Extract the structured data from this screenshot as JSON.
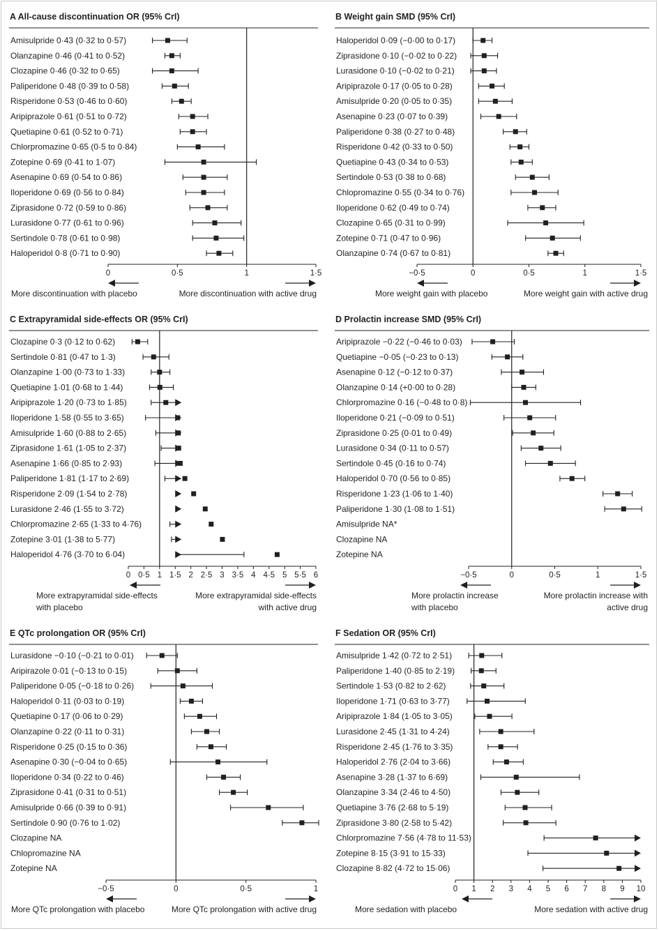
{
  "colors": {
    "ink": "#231f20",
    "rule": "#231f20",
    "frame": "#c9c9c9"
  },
  "chart_data": [
    {
      "id": "A",
      "letter": "A",
      "title": "All-cause discontinuation OR (95% CrI)",
      "type": "forest",
      "scale": "linear",
      "xlim": [
        0,
        1.5
      ],
      "null_value": 1,
      "ticks": [
        0,
        0.5,
        1,
        1.5
      ],
      "tick_labels": [
        "0",
        "0·5",
        "1",
        "1·5"
      ],
      "left_label": [
        "More discontinuation with placebo"
      ],
      "right_label": [
        "More discontinuation with active drug"
      ],
      "rows": [
        {
          "label": "Amisulpride 0·43 (0·32 to 0·57)",
          "est": 0.43,
          "lo": 0.32,
          "hi": 0.57
        },
        {
          "label": "Olanzapine 0·46 (0·41 to 0·52)",
          "est": 0.46,
          "lo": 0.41,
          "hi": 0.52
        },
        {
          "label": "Clozapine 0·46 (0·32 to 0·65)",
          "est": 0.46,
          "lo": 0.32,
          "hi": 0.65
        },
        {
          "label": "Paliperidone 0·48 (0·39 to 0·58)",
          "est": 0.48,
          "lo": 0.39,
          "hi": 0.58
        },
        {
          "label": "Risperidone 0·53 (0·46 to 0·60)",
          "est": 0.53,
          "lo": 0.46,
          "hi": 0.6
        },
        {
          "label": "Aripiprazole 0·61 (0·51 to 0·72)",
          "est": 0.61,
          "lo": 0.51,
          "hi": 0.72
        },
        {
          "label": "Quetiapine 0·61 (0·52 to 0·71)",
          "est": 0.61,
          "lo": 0.52,
          "hi": 0.71
        },
        {
          "label": "Chlorpromazine 0·65 (0·5 to 0·84)",
          "est": 0.65,
          "lo": 0.5,
          "hi": 0.84
        },
        {
          "label": "Zotepine 0·69 (0·41 to 1·07)",
          "est": 0.69,
          "lo": 0.41,
          "hi": 1.07
        },
        {
          "label": "Asenapine 0·69 (0·54 to 0·86)",
          "est": 0.69,
          "lo": 0.54,
          "hi": 0.86
        },
        {
          "label": "Iloperidone 0·69 (0·56 to 0·84)",
          "est": 0.69,
          "lo": 0.56,
          "hi": 0.84
        },
        {
          "label": "Ziprasidone 0·72 (0·59 to 0·86)",
          "est": 0.72,
          "lo": 0.59,
          "hi": 0.86
        },
        {
          "label": "Lurasidone 0·77 (0·61 to 0·96)",
          "est": 0.77,
          "lo": 0.61,
          "hi": 0.96
        },
        {
          "label": "Sertindole 0·78 (0·61 to 0·98)",
          "est": 0.78,
          "lo": 0.61,
          "hi": 0.98
        },
        {
          "label": "Haloperidol 0·8 (0·71 to 0·90)",
          "est": 0.8,
          "lo": 0.71,
          "hi": 0.9
        }
      ]
    },
    {
      "id": "B",
      "letter": "B",
      "title": "Weight gain SMD (95% CrI)",
      "type": "forest",
      "scale": "linear",
      "xlim": [
        -0.5,
        1.5
      ],
      "null_value": 0,
      "ticks": [
        -0.5,
        0,
        0.5,
        1,
        1.5
      ],
      "tick_labels": [
        "−0·5",
        "0",
        "0·5",
        "1",
        "1·5"
      ],
      "left_label": [
        "More weight gain with placebo"
      ],
      "right_label": [
        "More weight gain with active drug"
      ],
      "rows": [
        {
          "label": "Haloperidol 0·09 (−0·00 to 0·17)",
          "est": 0.09,
          "lo": 0.0,
          "hi": 0.17
        },
        {
          "label": "Ziprasidone 0·10 (−0·02 to 0·22)",
          "est": 0.1,
          "lo": -0.02,
          "hi": 0.22
        },
        {
          "label": "Lurasidone 0·10 (−0·02 to 0·21)",
          "est": 0.1,
          "lo": -0.02,
          "hi": 0.21
        },
        {
          "label": "Aripiprazole 0·17 (0·05 to 0·28)",
          "est": 0.17,
          "lo": 0.05,
          "hi": 0.28
        },
        {
          "label": "Amisulpride 0·20 (0·05 to 0·35)",
          "est": 0.2,
          "lo": 0.05,
          "hi": 0.35
        },
        {
          "label": "Asenapine 0·23 (0·07 to 0·39)",
          "est": 0.23,
          "lo": 0.07,
          "hi": 0.39
        },
        {
          "label": "Paliperidone 0·38 (0·27 to 0·48)",
          "est": 0.38,
          "lo": 0.27,
          "hi": 0.48
        },
        {
          "label": "Risperidone 0·42 (0·33 to 0·50)",
          "est": 0.42,
          "lo": 0.33,
          "hi": 0.5
        },
        {
          "label": "Quetiapine 0·43 (0·34 to 0·53)",
          "est": 0.43,
          "lo": 0.34,
          "hi": 0.53
        },
        {
          "label": "Sertindole 0·53 (0·38 to 0·68)",
          "est": 0.53,
          "lo": 0.38,
          "hi": 0.68
        },
        {
          "label": "Chlopromazine 0·55 (0·34 to 0·76)",
          "est": 0.55,
          "lo": 0.34,
          "hi": 0.76
        },
        {
          "label": "Iloperidone 0·62 (0·49 to 0·74)",
          "est": 0.62,
          "lo": 0.49,
          "hi": 0.74
        },
        {
          "label": "Clozapine 0·65 (0·31 to 0·99)",
          "est": 0.65,
          "lo": 0.31,
          "hi": 0.99
        },
        {
          "label": "Zotepine 0·71 (0·47 to 0·96)",
          "est": 0.71,
          "lo": 0.47,
          "hi": 0.96
        },
        {
          "label": "Olanzapine 0·74 (0·67 to 0·81)",
          "est": 0.74,
          "lo": 0.67,
          "hi": 0.81
        }
      ]
    },
    {
      "id": "C",
      "letter": "C",
      "title": "Extrapyramidal side-effects OR (95% CrI)",
      "type": "forest",
      "scale": "linear",
      "xlim": [
        0,
        6
      ],
      "null_value": 1,
      "ticks": [
        0,
        0.5,
        1,
        1.5,
        2,
        2.5,
        3,
        3.5,
        4,
        4.5,
        5,
        5.5,
        6
      ],
      "tick_labels": [
        "0",
        "0·5",
        "1",
        "1·5",
        "2",
        "2·5",
        "3",
        "3·5",
        "4",
        "4·5",
        "5",
        "5·5",
        "6"
      ],
      "left_label": [
        "More extrapyramidal side-effects",
        "with placebo"
      ],
      "right_label": [
        "More extrapyramidal side-effects",
        "with active drug"
      ],
      "rows": [
        {
          "label": "Clozapine 0·3 (0·12 to 0·62)",
          "est": 0.3,
          "lo": 0.12,
          "hi": 0.62
        },
        {
          "label": "Sertindole 0·81 (0·47 to 1·3)",
          "est": 0.81,
          "lo": 0.47,
          "hi": 1.3
        },
        {
          "label": "Olanzapine 1·00 (0·73 to 1·33)",
          "est": 1.0,
          "lo": 0.73,
          "hi": 1.33
        },
        {
          "label": "Quetiapine 1·01 (0·68 to 1·44)",
          "est": 1.01,
          "lo": 0.68,
          "hi": 1.44
        },
        {
          "label": "Aripiprazole 1·20 (0·73 to 1·85)",
          "est": 1.2,
          "lo": 0.73,
          "hi": 1.85
        },
        {
          "label": "Iloperidone 1·58 (0·55 to 3·65)",
          "est": 1.58,
          "lo": 0.55,
          "hi": 3.65
        },
        {
          "label": "Amisulpride 1·60 (0·88 to 2·65)",
          "est": 1.6,
          "lo": 0.88,
          "hi": 2.65
        },
        {
          "label": "Ziprasidone 1·61 (1·05 to 2·37)",
          "est": 1.61,
          "lo": 1.05,
          "hi": 2.37
        },
        {
          "label": "Asenapine 1·66 (0·85 to 2·93)",
          "est": 1.66,
          "lo": 0.85,
          "hi": 2.93
        },
        {
          "label": "Paliperidone 1·81 (1·17 to 2·69)",
          "est": 1.81,
          "lo": 1.17,
          "hi": 2.69
        },
        {
          "label": "Risperidone 2·09 (1·54 to 2·78)",
          "est": 2.09,
          "lo": 1.54,
          "hi": 2.78
        },
        {
          "label": "Lurasidone 2·46 (1·55 to 3·72)",
          "est": 2.46,
          "lo": 1.55,
          "hi": 3.72
        },
        {
          "label": "Chlorpromazine 2·65 (1·33 to 4·76)",
          "est": 2.65,
          "lo": 1.33,
          "hi": 4.76
        },
        {
          "label": "Zotepine 3·01 (1·38 to 5·77)",
          "est": 3.01,
          "lo": 1.38,
          "hi": 5.77
        },
        {
          "label": "Haloperidol 4·76 (3·70 to 6·04)",
          "est": 4.76,
          "lo": 3.7,
          "hi": 6.04
        }
      ]
    },
    {
      "id": "D",
      "letter": "D",
      "title": "Prolactin increase SMD (95% CrI)",
      "type": "forest",
      "scale": "linear",
      "xlim": [
        -0.5,
        1.5
      ],
      "null_value": 0,
      "ticks": [
        -0.5,
        0,
        0.5,
        1,
        1.5
      ],
      "tick_labels": [
        "−0·5",
        "0",
        "0·5",
        "1",
        "1·5"
      ],
      "left_label": [
        "More prolactin increase",
        "with placebo"
      ],
      "right_label": [
        "More prolactin increase with",
        "active drug"
      ],
      "rows": [
        {
          "label": "Aripiprazole −0·22 (−0·46 to 0·03)",
          "est": -0.22,
          "lo": -0.46,
          "hi": 0.03
        },
        {
          "label": "Quetiapine −0·05 (−0·23 to 0·13)",
          "est": -0.05,
          "lo": -0.23,
          "hi": 0.13
        },
        {
          "label": "Asenapine 0·12 (−0·12 to 0·37)",
          "est": 0.12,
          "lo": -0.12,
          "hi": 0.37
        },
        {
          "label": "Olanzapine 0·14 (+0·00 to 0·28)",
          "est": 0.14,
          "lo": 0.0,
          "hi": 0.28
        },
        {
          "label": "Chlorpromazine 0·16 (−0·48 to 0·8)",
          "est": 0.16,
          "lo": -0.48,
          "hi": 0.8
        },
        {
          "label": "Iloperidone 0·21 (−0·09 to 0·51)",
          "est": 0.21,
          "lo": -0.09,
          "hi": 0.51
        },
        {
          "label": "Ziprasidone 0·25 (0·01 to 0·49)",
          "est": 0.25,
          "lo": 0.01,
          "hi": 0.49
        },
        {
          "label": "Lurasidone 0·34 (0·11 to 0·57)",
          "est": 0.34,
          "lo": 0.11,
          "hi": 0.57
        },
        {
          "label": "Sertindole 0·45 (0·16 to 0·74)",
          "est": 0.45,
          "lo": 0.16,
          "hi": 0.74
        },
        {
          "label": "Haloperidol 0·70 (0·56 to 0·85)",
          "est": 0.7,
          "lo": 0.56,
          "hi": 0.85
        },
        {
          "label": "Risperidone 1·23 (1·06 to 1·40)",
          "est": 1.23,
          "lo": 1.06,
          "hi": 1.4
        },
        {
          "label": "Paliperidone 1·30 (1·08 to 1·51)",
          "est": 1.3,
          "lo": 1.08,
          "hi": 1.51
        },
        {
          "label": "Amisulpride NA*",
          "est": null,
          "lo": null,
          "hi": null
        },
        {
          "label": "Clozapine NA",
          "est": null,
          "lo": null,
          "hi": null
        },
        {
          "label": "Zotepine NA",
          "est": null,
          "lo": null,
          "hi": null
        }
      ]
    },
    {
      "id": "E",
      "letter": "E",
      "title": "QTc prolongation OR (95% CrI)",
      "type": "forest",
      "scale": "linear",
      "xlim": [
        -0.5,
        1
      ],
      "null_value": 0,
      "ticks": [
        -0.5,
        0,
        0.5,
        1
      ],
      "tick_labels": [
        "−0·5",
        "0",
        "0·5",
        "1"
      ],
      "left_label": [
        "More QTc prolongation with placebo"
      ],
      "right_label": [
        "More QTc prolongation with active drug"
      ],
      "rows": [
        {
          "label": "Lurasidone −0·10 (−0·21 to 0·01)",
          "est": -0.1,
          "lo": -0.21,
          "hi": 0.01
        },
        {
          "label": "Aripirazole 0·01 (−0·13 to 0·15)",
          "est": 0.01,
          "lo": -0.13,
          "hi": 0.15
        },
        {
          "label": "Paliperidone 0·05 (−0·18 to 0·26)",
          "est": 0.05,
          "lo": -0.18,
          "hi": 0.26
        },
        {
          "label": "Haloperidol 0·11 (0·03 to 0·19)",
          "est": 0.11,
          "lo": 0.03,
          "hi": 0.19
        },
        {
          "label": "Quetiapine 0·17 (0·06 to 0·29)",
          "est": 0.17,
          "lo": 0.06,
          "hi": 0.29
        },
        {
          "label": "Olanzapine 0·22 (0·11 to 0·31)",
          "est": 0.22,
          "lo": 0.11,
          "hi": 0.31
        },
        {
          "label": "Risperidone 0·25 (0·15 to 0·36)",
          "est": 0.25,
          "lo": 0.15,
          "hi": 0.36
        },
        {
          "label": "Asenapine 0·30 (−0·04 to 0·65)",
          "est": 0.3,
          "lo": -0.04,
          "hi": 0.65
        },
        {
          "label": "Iloperidone 0·34 (0·22 to 0·46)",
          "est": 0.34,
          "lo": 0.22,
          "hi": 0.46
        },
        {
          "label": "Ziprasidone 0·41 (0·31 to 0·51)",
          "est": 0.41,
          "lo": 0.31,
          "hi": 0.51
        },
        {
          "label": "Amisulpride 0·66 (0·39 to 0·91)",
          "est": 0.66,
          "lo": 0.39,
          "hi": 0.91
        },
        {
          "label": "Sertindole 0·90 (0·76 to 1·02)",
          "est": 0.9,
          "lo": 0.76,
          "hi": 1.02
        },
        {
          "label": "Clozapine NA",
          "est": null,
          "lo": null,
          "hi": null
        },
        {
          "label": "Chlopromazine NA",
          "est": null,
          "lo": null,
          "hi": null
        },
        {
          "label": "Zotepine NA",
          "est": null,
          "lo": null,
          "hi": null
        }
      ]
    },
    {
      "id": "F",
      "letter": "F",
      "title": "Sedation OR (95% CrI)",
      "type": "forest",
      "scale": "linear",
      "xlim": [
        0,
        10
      ],
      "null_value": 1,
      "ticks": [
        0,
        1,
        2,
        3,
        4,
        5,
        6,
        7,
        8,
        9,
        10
      ],
      "tick_labels": [
        "0",
        "1",
        "2",
        "3",
        "4",
        "5",
        "6",
        "7",
        "8",
        "9",
        "10"
      ],
      "left_label": [
        "More sedation with placebo"
      ],
      "right_label": [
        "More sedation with active drug"
      ],
      "rows": [
        {
          "label": "Amisulpride 1·42 (0·72 to 2·51)",
          "est": 1.42,
          "lo": 0.72,
          "hi": 2.51
        },
        {
          "label": "Paliperidone 1·40 (0·85 to 2·19)",
          "est": 1.4,
          "lo": 0.85,
          "hi": 2.19
        },
        {
          "label": "Sertindole 1·53 (0·82 to 2·62)",
          "est": 1.53,
          "lo": 0.82,
          "hi": 2.62
        },
        {
          "label": "Iloperidone 1·71 (0·63 to 3·77)",
          "est": 1.71,
          "lo": 0.63,
          "hi": 3.77
        },
        {
          "label": "Aripiprazole 1·84 (1·05 to 3·05)",
          "est": 1.84,
          "lo": 1.05,
          "hi": 3.05
        },
        {
          "label": "Lurasidone 2·45 (1·31 to 4·24)",
          "est": 2.45,
          "lo": 1.31,
          "hi": 4.24
        },
        {
          "label": "Risperidone 2·45 (1·76 to 3·35)",
          "est": 2.45,
          "lo": 1.76,
          "hi": 3.35
        },
        {
          "label": "Haloperidol 2·76 (2·04 to 3·66)",
          "est": 2.76,
          "lo": 2.04,
          "hi": 3.66
        },
        {
          "label": "Asenapine 3·28 (1·37 to 6·69)",
          "est": 3.28,
          "lo": 1.37,
          "hi": 6.69
        },
        {
          "label": "Olanzapine 3·34 (2·46 to 4·50)",
          "est": 3.34,
          "lo": 2.46,
          "hi": 4.5
        },
        {
          "label": "Quetiapine 3·76 (2·68 to 5·19)",
          "est": 3.76,
          "lo": 2.68,
          "hi": 5.19
        },
        {
          "label": "Ziprasidone 3·80 (2·58 to 5·42)",
          "est": 3.8,
          "lo": 2.58,
          "hi": 5.42
        },
        {
          "label": "Chlorpromazine 7·56 (4·78 to 11·53)",
          "est": 7.56,
          "lo": 4.78,
          "hi": 11.53
        },
        {
          "label": "Zotepine 8·15 (3·91 to 15·33)",
          "est": 8.15,
          "lo": 3.91,
          "hi": 15.33
        },
        {
          "label": "Clozapine 8·82 (4·72 to 15·06)",
          "est": 8.82,
          "lo": 4.72,
          "hi": 15.06
        }
      ]
    }
  ]
}
